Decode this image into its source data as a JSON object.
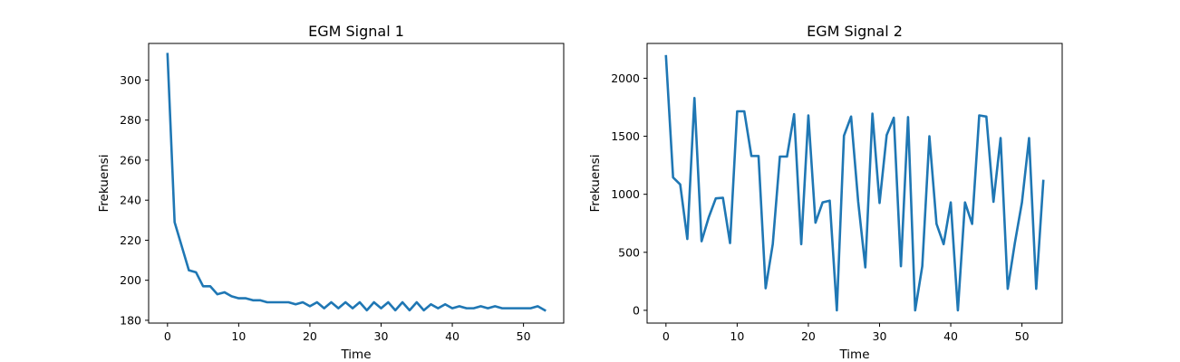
{
  "chart_data": [
    {
      "type": "line",
      "title": "EGM Signal 1",
      "xlabel": "Time",
      "ylabel": "Frekuensi",
      "xlim": [
        -2.65,
        55.65
      ],
      "ylim": [
        178.6,
        318.3
      ],
      "xticks": [
        0,
        10,
        20,
        30,
        40,
        50
      ],
      "yticks": [
        180,
        200,
        220,
        240,
        260,
        280,
        300
      ],
      "grid": false,
      "color": "#1f77b4",
      "x": [
        0,
        1,
        2,
        3,
        4,
        5,
        6,
        7,
        8,
        9,
        10,
        11,
        12,
        13,
        14,
        15,
        16,
        17,
        18,
        19,
        20,
        21,
        22,
        23,
        24,
        25,
        26,
        27,
        28,
        29,
        30,
        31,
        32,
        33,
        34,
        35,
        36,
        37,
        38,
        39,
        40,
        41,
        42,
        43,
        44,
        45,
        46,
        47,
        48,
        49,
        50,
        51,
        52,
        53
      ],
      "y": [
        313,
        229,
        217,
        205,
        204,
        197,
        197,
        193,
        194,
        192,
        191,
        191,
        190,
        190,
        189,
        189,
        189,
        189,
        188,
        189,
        187,
        189,
        186,
        189,
        186,
        189,
        186,
        189,
        185,
        189,
        186,
        189,
        185,
        189,
        185,
        189,
        185,
        188,
        186,
        188,
        186,
        187,
        186,
        186,
        187,
        186,
        187,
        186,
        186,
        186,
        186,
        186,
        187,
        185
      ]
    },
    {
      "type": "line",
      "title": "EGM Signal 2",
      "xlabel": "Time",
      "ylabel": "Frekuensi",
      "xlim": [
        -2.65,
        55.65
      ],
      "ylim": [
        -110,
        2300
      ],
      "xticks": [
        0,
        10,
        20,
        30,
        40,
        50
      ],
      "yticks": [
        0,
        500,
        1000,
        1500,
        2000
      ],
      "grid": false,
      "color": "#1f77b4",
      "x": [
        0,
        1,
        2,
        3,
        4,
        5,
        6,
        7,
        8,
        9,
        10,
        11,
        12,
        13,
        14,
        15,
        16,
        17,
        18,
        19,
        20,
        21,
        22,
        23,
        24,
        25,
        26,
        27,
        28,
        29,
        30,
        31,
        32,
        33,
        34,
        35,
        36,
        37,
        38,
        39,
        40,
        41,
        42,
        43,
        44,
        45,
        46,
        47,
        48,
        49,
        50,
        51,
        52,
        53
      ],
      "y": [
        2190,
        1145,
        1085,
        615,
        1830,
        595,
        800,
        965,
        970,
        580,
        1715,
        1715,
        1330,
        1330,
        190,
        570,
        1325,
        1325,
        1690,
        570,
        1680,
        755,
        930,
        945,
        0,
        1505,
        1670,
        935,
        370,
        1695,
        925,
        1510,
        1660,
        380,
        1665,
        0,
        380,
        1500,
        745,
        570,
        930,
        0,
        930,
        745,
        1680,
        1670,
        935,
        1485,
        185,
        580,
        930,
        1485,
        185,
        1115
      ]
    }
  ]
}
